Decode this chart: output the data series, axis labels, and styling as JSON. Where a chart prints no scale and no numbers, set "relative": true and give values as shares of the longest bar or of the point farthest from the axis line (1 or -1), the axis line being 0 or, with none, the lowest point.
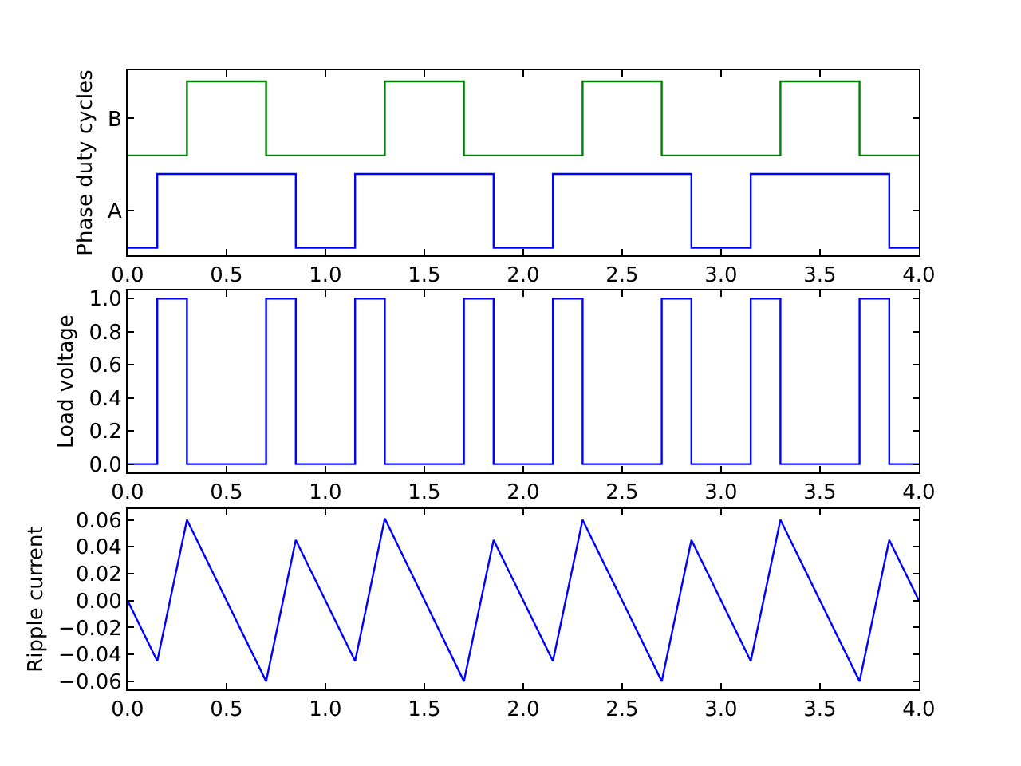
{
  "chart_data": [
    {
      "type": "step",
      "ylabel": "Phase duty cycles",
      "relative": true,
      "xlim": [
        0,
        4
      ],
      "xticks": [
        {
          "value": 0,
          "label": "0.0"
        },
        0.5,
        {
          "value": 1,
          "label": "1.0"
        },
        1.5,
        {
          "value": 2,
          "label": "2.0"
        },
        2.5,
        {
          "value": 3,
          "label": "3.0"
        },
        3.5,
        {
          "value": 4,
          "label": "4.0"
        }
      ],
      "series": [
        {
          "name": "A",
          "color": "#0000ff",
          "x": [
            0,
            0.15,
            0.85,
            1.15,
            1.85,
            2.15,
            2.85,
            3.15,
            3.85,
            4.0
          ],
          "values": [
            0.043,
            0.468,
            0.043,
            0.468,
            0.043,
            0.468,
            0.043,
            0.468,
            0.043,
            0.043
          ]
        },
        {
          "name": "B",
          "color": "#008000",
          "x": [
            0,
            0.3,
            0.7,
            1.3,
            1.7,
            2.3,
            2.7,
            3.3,
            3.7,
            4.0
          ],
          "values": [
            0.574,
            1,
            0.574,
            1,
            0.574,
            1,
            0.574,
            1,
            0.574,
            0.574
          ]
        }
      ]
    },
    {
      "type": "step",
      "ylabel": "Load voltage",
      "xlim": [
        0,
        4
      ],
      "xticks": [
        {
          "value": 0,
          "label": "0.0"
        },
        0.5,
        {
          "value": 1,
          "label": "1.0"
        },
        1.5,
        {
          "value": 2,
          "label": "2.0"
        },
        2.5,
        {
          "value": 3,
          "label": "3.0"
        },
        3.5,
        {
          "value": 4,
          "label": "4.0"
        }
      ],
      "ylim": [
        -0.05,
        1.05
      ],
      "yticks": [
        {
          "value": 0,
          "label": "0.0"
        },
        0.2,
        0.4,
        0.6,
        0.8,
        {
          "value": 1,
          "label": "1.0"
        }
      ],
      "series": [
        {
          "color": "#0000ff",
          "x": [
            0,
            0.15,
            0.3,
            0.7,
            0.85,
            1.15,
            1.3,
            1.7,
            1.85,
            2.15,
            2.3,
            2.7,
            2.85,
            3.15,
            3.3,
            3.7,
            3.85,
            4.0
          ],
          "values": [
            0,
            1,
            0,
            1,
            0,
            1,
            0,
            1,
            0,
            1,
            0,
            1,
            0,
            1,
            0,
            1,
            0,
            0
          ]
        }
      ]
    },
    {
      "type": "line",
      "ylabel": "Ripple current",
      "xlim": [
        0,
        4
      ],
      "xticks": [
        {
          "value": 0,
          "label": "0.0"
        },
        0.5,
        {
          "value": 1,
          "label": "1.0"
        },
        1.5,
        {
          "value": 2,
          "label": "2.0"
        },
        2.5,
        {
          "value": 3,
          "label": "3.0"
        },
        3.5,
        {
          "value": 4,
          "label": "4.0"
        }
      ],
      "ylim": [
        -0.066,
        0.068
      ],
      "yticks": [
        {
          "value": -0.06,
          "label": "−0.06"
        },
        {
          "value": -0.04,
          "label": "−0.04"
        },
        {
          "value": -0.02,
          "label": "−0.02"
        },
        {
          "value": 0,
          "label": "0.00"
        },
        0.02,
        0.04,
        0.06
      ],
      "series": [
        {
          "color": "#0000ff",
          "x": [
            0,
            0.15,
            0.3,
            0.7,
            0.85,
            1.15,
            1.3,
            1.7,
            1.85,
            2.15,
            2.3,
            2.7,
            2.85,
            3.15,
            3.3,
            3.7,
            3.85,
            4.0
          ],
          "values": [
            0,
            -0.045,
            0.06,
            -0.06,
            0.045,
            -0.045,
            0.061,
            -0.06,
            0.045,
            -0.045,
            0.06,
            -0.06,
            0.045,
            -0.045,
            0.06,
            -0.06,
            0.045,
            0
          ]
        }
      ]
    }
  ]
}
